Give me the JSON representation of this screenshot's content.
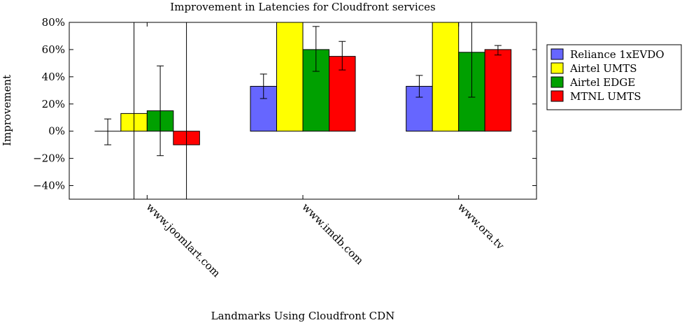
{
  "chart_data": {
    "type": "bar",
    "title": "Improvement in Latencies for Cloudfront services",
    "xlabel": "Landmarks Using Cloudfront CDN",
    "ylabel": "Improvement",
    "ylim": [
      -50,
      80
    ],
    "yticks": [
      -40,
      -20,
      0,
      20,
      40,
      60,
      80
    ],
    "ytick_labels": [
      "−40%",
      "−20%",
      "0%",
      "20%",
      "40%",
      "60%",
      "80%"
    ],
    "categories": [
      "www.joomlart.com",
      "www.imdb.com",
      "www.ora.tv"
    ],
    "legend_position": "right",
    "grid": false,
    "series": [
      {
        "name": "Reliance 1xEVDO",
        "color": "#6666ff",
        "values": [
          0,
          33,
          33
        ],
        "err_low": [
          -10,
          24,
          25
        ],
        "err_high": [
          9,
          42,
          41
        ]
      },
      {
        "name": "Airtel UMTS",
        "color": "#ffff00",
        "values": [
          13,
          80,
          80
        ],
        "err_low": [
          -50,
          80,
          80
        ],
        "err_high": [
          80,
          80,
          80
        ]
      },
      {
        "name": "Airtel EDGE",
        "color": "#00a000",
        "values": [
          15,
          60,
          58
        ],
        "err_low": [
          -18,
          44,
          25
        ],
        "err_high": [
          48,
          77,
          80
        ]
      },
      {
        "name": "MTNL UMTS",
        "color": "#ff0000",
        "values": [
          -10,
          55,
          60
        ],
        "err_low": [
          -50,
          45,
          56
        ],
        "err_high": [
          80,
          66,
          63
        ]
      }
    ]
  }
}
